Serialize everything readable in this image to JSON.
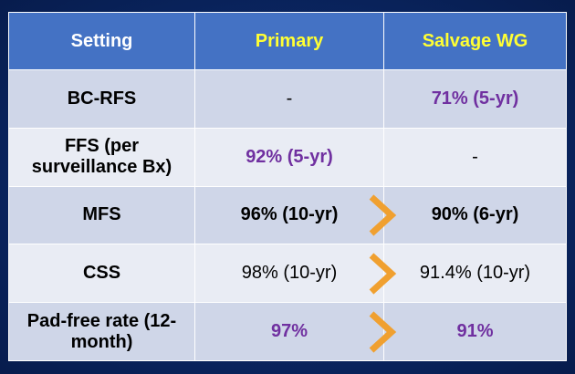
{
  "table": {
    "headers": [
      "Setting",
      "Primary",
      "Salvage WG"
    ],
    "rows": [
      {
        "setting": "BC-RFS",
        "primary": "-",
        "salvage": "71% (5-yr)",
        "arrow": false
      },
      {
        "setting": "FFS (per surveillance Bx)",
        "primary": "92% (5-yr)",
        "salvage": "-",
        "arrow": false
      },
      {
        "setting": "MFS",
        "primary": "96% (10-yr)",
        "salvage": "90% (6-yr)",
        "arrow": true
      },
      {
        "setting": "CSS",
        "primary": "98% (10-yr)",
        "salvage": "91.4% (10-yr)",
        "arrow": true
      },
      {
        "setting": "Pad-free rate (12-month)",
        "primary": "97%",
        "salvage": "91%",
        "arrow": true
      }
    ]
  },
  "colors": {
    "background": "#0b2a6b",
    "header_bg": "#4472c4",
    "header_text": "#ffffff",
    "header_accent": "#ffff33",
    "row_odd": "#cfd6e8",
    "row_even": "#e9ecf4",
    "purple_text": "#7030a0",
    "arrow": "#f0a030"
  },
  "icons": {
    "arrow": "chevron-right-icon"
  }
}
